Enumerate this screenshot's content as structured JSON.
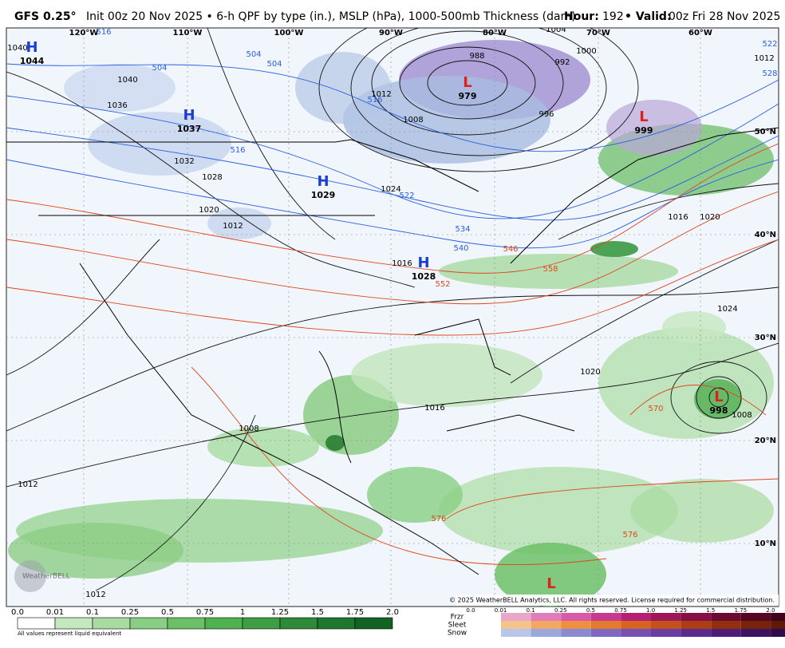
{
  "header": {
    "model": "GFS 0.25°",
    "description": "Init 00z 20 Nov 2025 • 6-h QPF by type (in.), MSLP (hPa), 1000-500mb Thickness (dam)",
    "hour_label": "Hour:",
    "hour": "192",
    "valid_label": "• Valid:",
    "valid": "00z Fri 28 Nov 2025"
  },
  "map": {
    "longitudes": [
      "120°W",
      "110°W",
      "100°W",
      "90°W",
      "80°W",
      "70°W",
      "60°W"
    ],
    "latitudes": [
      "50°N",
      "40°N",
      "30°N",
      "20°N",
      "10°N"
    ],
    "pressure_centers": [
      {
        "symbol": "H",
        "value": "1044"
      },
      {
        "symbol": "H",
        "value": "1037"
      },
      {
        "symbol": "H",
        "value": "1029"
      },
      {
        "symbol": "H",
        "value": "1028"
      },
      {
        "symbol": "L",
        "value": "979"
      },
      {
        "symbol": "L",
        "value": "999"
      },
      {
        "symbol": "L",
        "value": "998"
      },
      {
        "symbol": "L"
      }
    ],
    "isobar_labels": [
      "1040",
      "1040",
      "1036",
      "1032",
      "1028",
      "1020",
      "1012",
      "1024",
      "1016",
      "1012",
      "1008",
      "988",
      "992",
      "996",
      "1000",
      "1004",
      "1012",
      "1016",
      "1020",
      "1024",
      "1020",
      "1016",
      "1012",
      "1008",
      "1008",
      "1012"
    ],
    "thickness_labels": [
      "516",
      "504",
      "504",
      "504",
      "516",
      "516",
      "522",
      "534",
      "540",
      "528",
      "522",
      "546",
      "552",
      "558",
      "570",
      "576",
      "576"
    ],
    "copyright": "© 2025 WeatherBELL Analytics, LLC. All rights reserved. License required for commercial distribution.",
    "watermark": "WeatherBELL"
  },
  "legend": {
    "qpf_ticks": [
      "0.0",
      "0.01",
      "0.1",
      "0.25",
      "0.5",
      "0.75",
      "1",
      "1.25",
      "1.5",
      "1.75",
      "2.0"
    ],
    "note": "All values represent liquid equivalent",
    "type_ticks": [
      "0.0",
      "0.01",
      "0.1",
      "0.25",
      "0.5",
      "0.75",
      "1.0",
      "1.25",
      "1.5",
      "1.75",
      "2.0"
    ],
    "types": [
      "Frzr",
      "Sleet",
      "Snow"
    ]
  }
}
